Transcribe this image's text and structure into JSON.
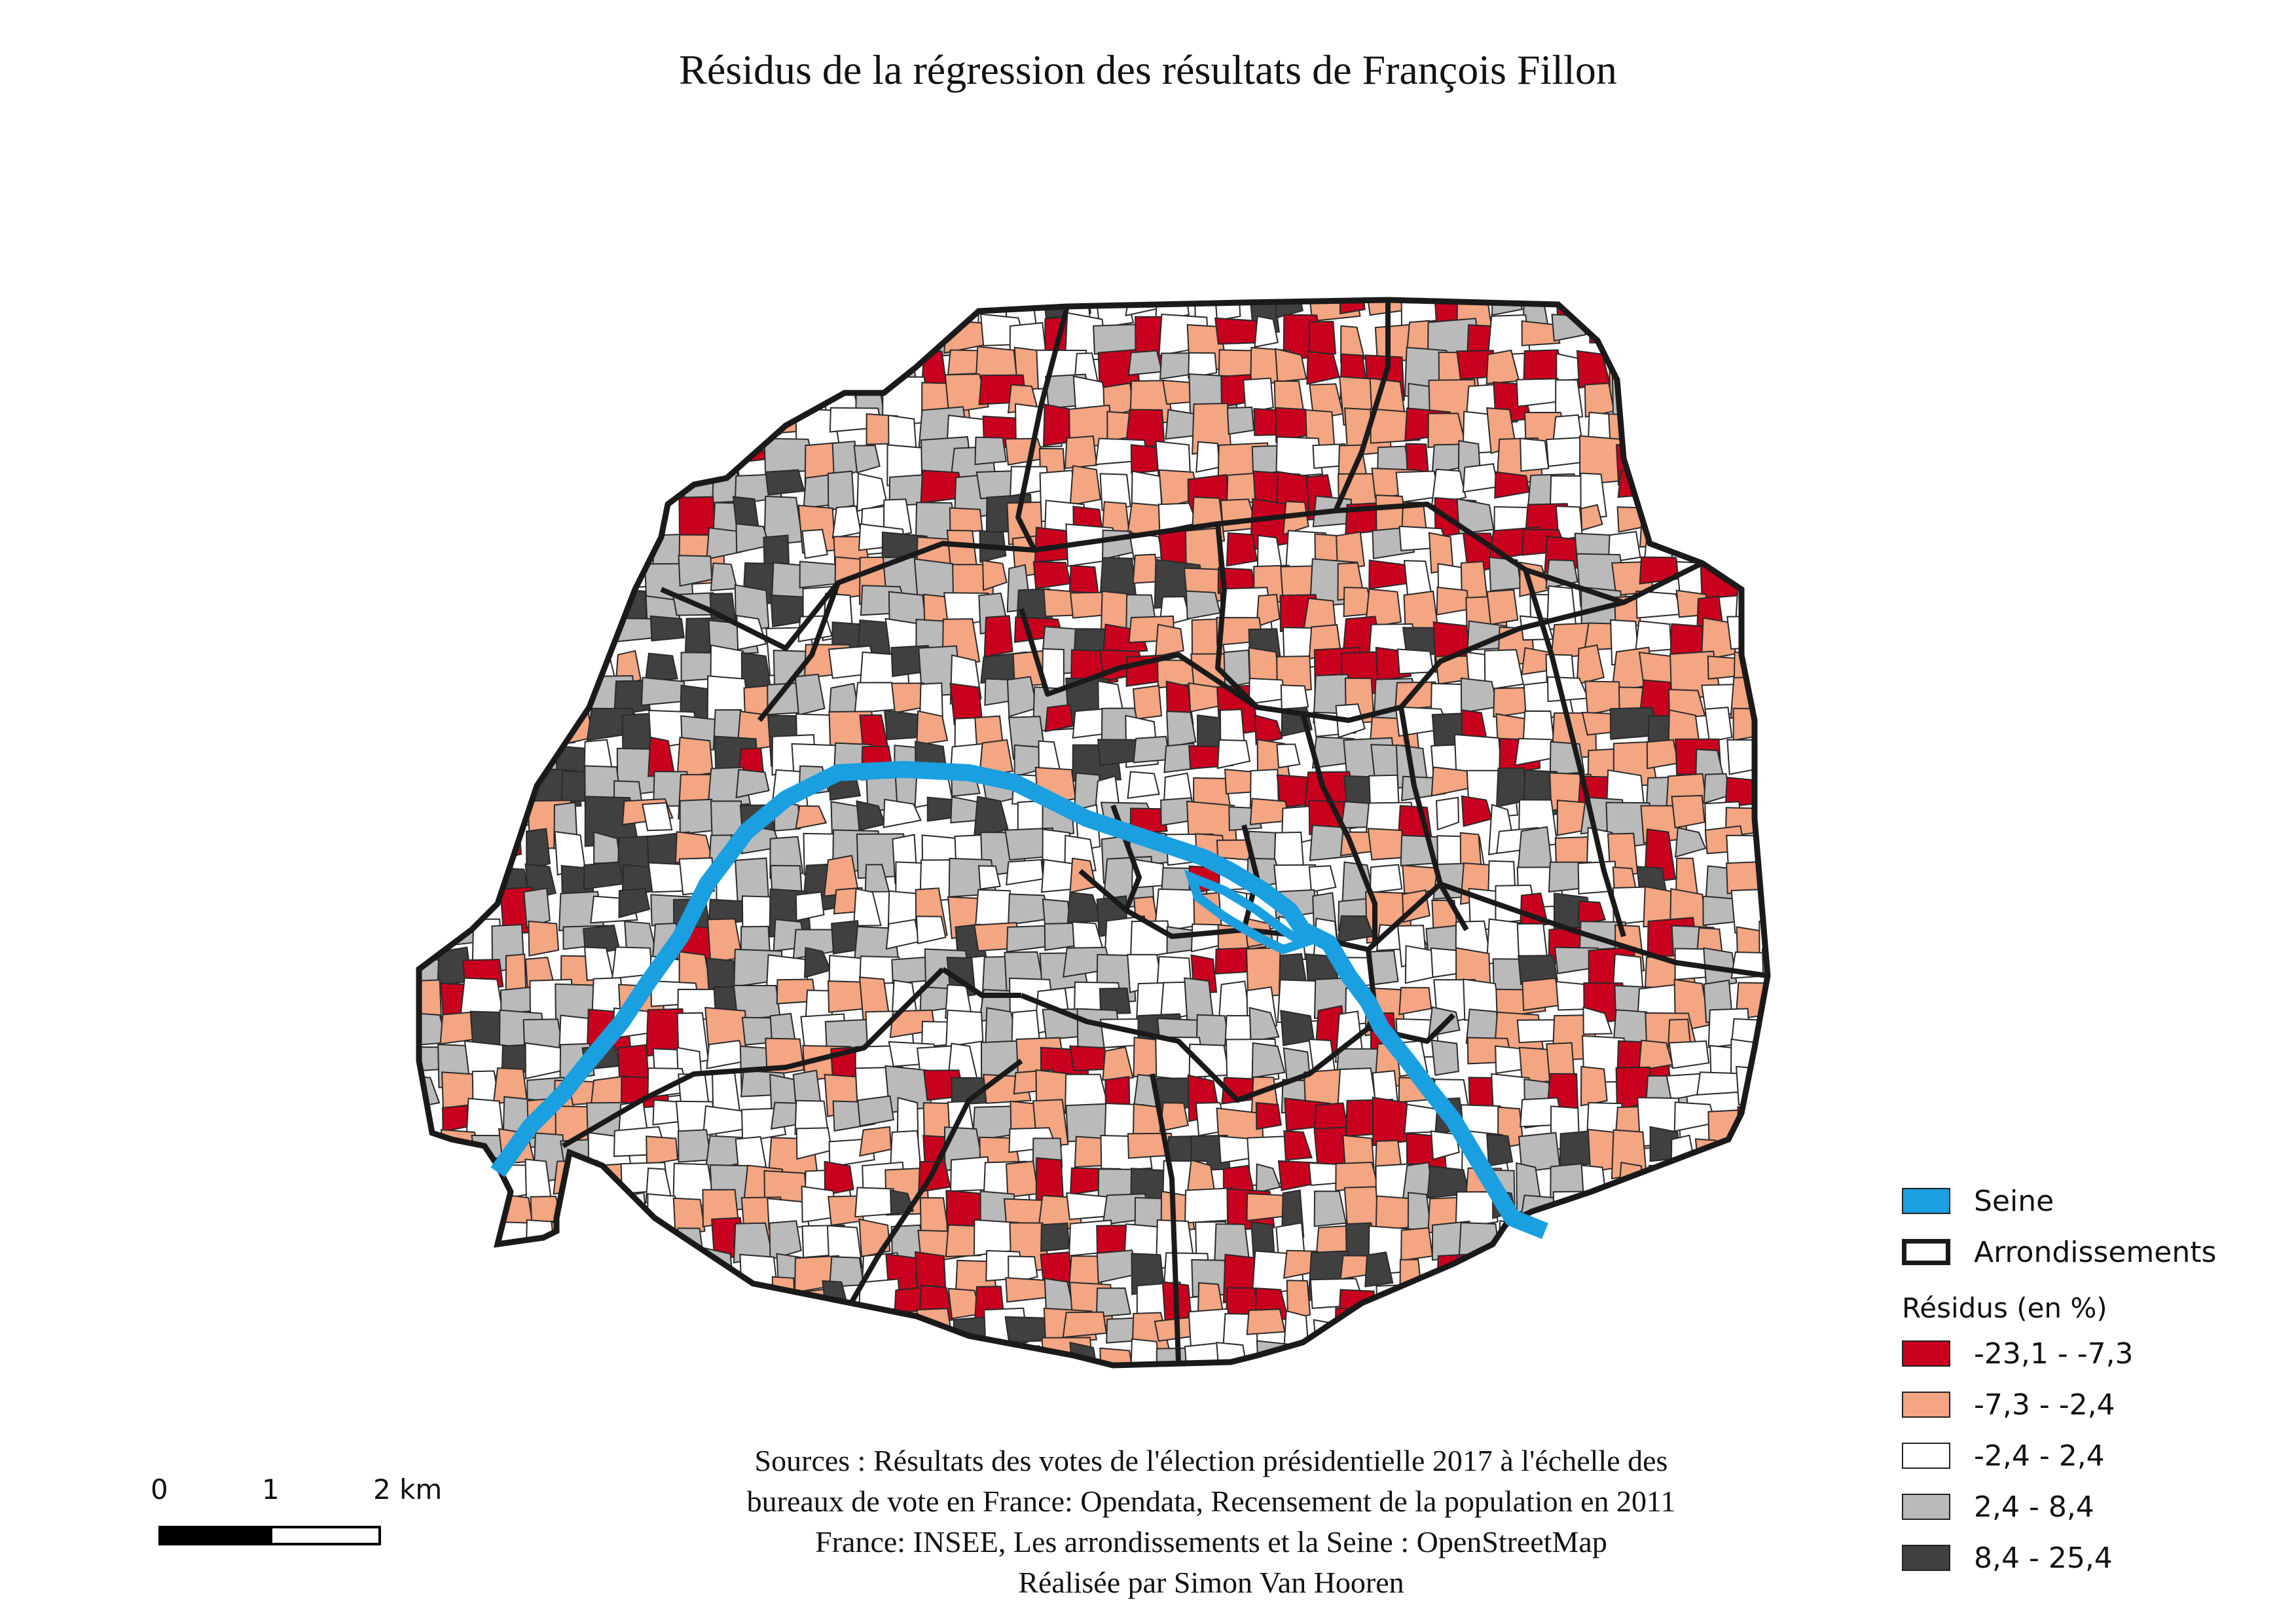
{
  "title": "Résidus de la régression des résultats de François Fillon",
  "legend": {
    "seine_label": "Seine",
    "arrondissements_label": "Arrondissements",
    "residus_title": "Résidus (en %)",
    "classes": [
      {
        "label": "-23,1 - -7,3",
        "color": "#c8001e"
      },
      {
        "label": "-7,3 - -2,4",
        "color": "#f4a582"
      },
      {
        "label": "-2,4 - 2,4",
        "color": "#ffffff"
      },
      {
        "label": "2,4 - 8,4",
        "color": "#bababa"
      },
      {
        "label": "8,4 - 25,4",
        "color": "#404040"
      }
    ],
    "seine_color": "#1a9fe0"
  },
  "sources": {
    "line1": "Sources : Résultats des votes de l'élection présidentielle 2017 à l'échelle des",
    "line2": "bureaux de vote en France: Opendata, Recensement de la population en 2011",
    "line3": "France: INSEE, Les arrondissements et la Seine : OpenStreetMap",
    "line4": "Réalisée par Simon Van Hooren"
  },
  "scale": {
    "tick0": "0",
    "tick1": "1",
    "tick2": "2 km"
  }
}
